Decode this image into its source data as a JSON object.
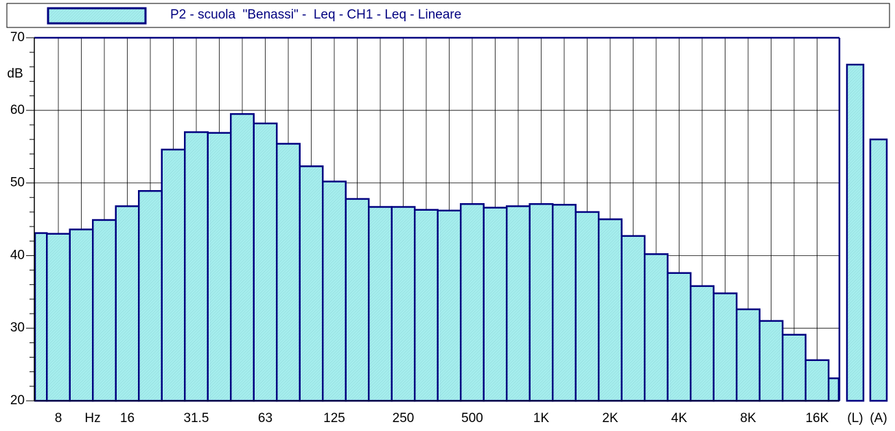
{
  "chart_data": {
    "type": "bar",
    "legend_label": "P2 - scuola  \"Benassi\" -  Leq - CH1 - Leq - Lineare",
    "y_unit": "dB",
    "x_unit": "Hz",
    "categories": [
      null,
      "8",
      null,
      null,
      "16",
      null,
      null,
      "31.5",
      null,
      null,
      "63",
      null,
      null,
      "125",
      null,
      null,
      "250",
      null,
      null,
      "500",
      null,
      null,
      "1K",
      null,
      null,
      "2K",
      null,
      null,
      "4K",
      null,
      null,
      "8K",
      null,
      null,
      "16K",
      null
    ],
    "values": [
      43.1,
      43.0,
      43.6,
      44.9,
      46.8,
      48.9,
      54.6,
      57.0,
      56.9,
      59.5,
      58.2,
      55.4,
      52.3,
      50.2,
      47.8,
      46.7,
      46.7,
      46.3,
      46.2,
      47.1,
      46.6,
      46.8,
      47.1,
      47.0,
      46.0,
      45.0,
      42.7,
      40.2,
      37.6,
      35.8,
      34.8,
      32.6,
      31.0,
      29.1,
      25.6,
      23.1
    ],
    "totals": {
      "categories": [
        "(L)",
        "(A)"
      ],
      "values": [
        66.3,
        56.0
      ]
    },
    "color": "#a6eeee",
    "edge_color": "#000080",
    "ylim": [
      20,
      70
    ],
    "yticks": [
      20,
      30,
      40,
      50,
      60,
      70
    ],
    "grid": true
  }
}
